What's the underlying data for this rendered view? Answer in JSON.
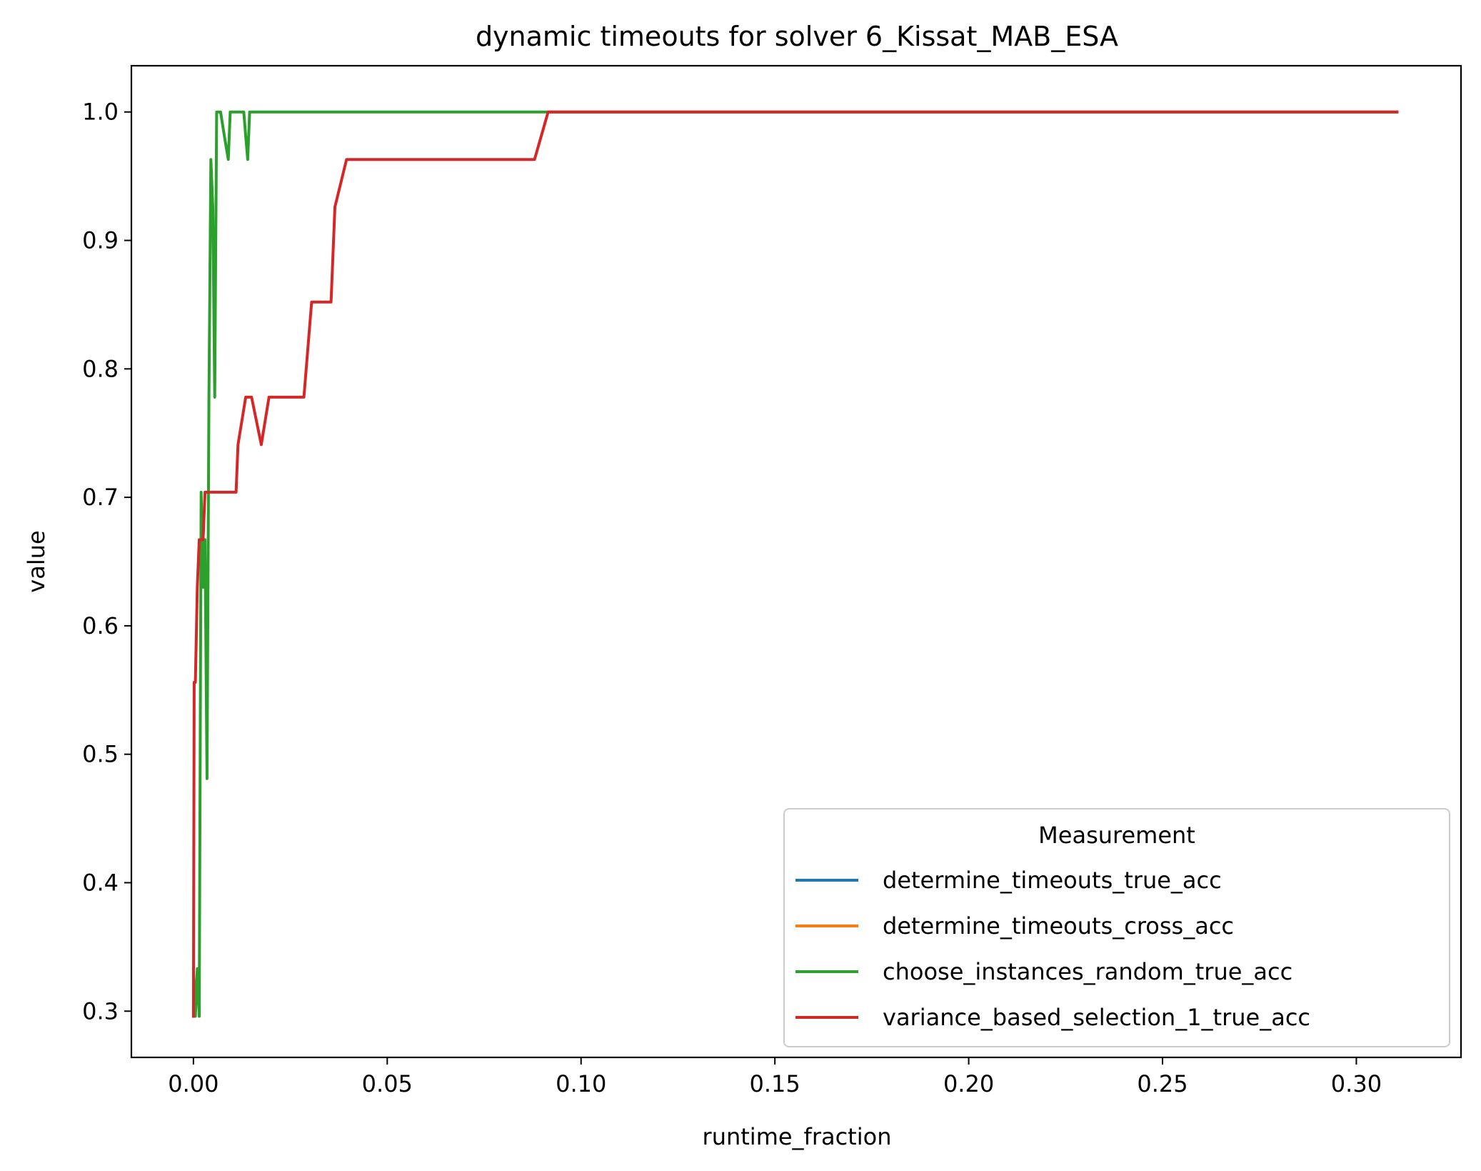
{
  "chart_data": {
    "type": "line",
    "title": "dynamic timeouts for solver 6_Kissat_MAB_ESA",
    "xlabel": "runtime_fraction",
    "ylabel": "value",
    "xlim": [
      -0.016,
      0.327
    ],
    "ylim": [
      0.264,
      1.036
    ],
    "xticks": [
      0.0,
      0.05,
      0.1,
      0.15,
      0.2,
      0.25,
      0.3
    ],
    "xtick_labels": [
      "0.00",
      "0.05",
      "0.10",
      "0.15",
      "0.20",
      "0.25",
      "0.30"
    ],
    "yticks": [
      0.3,
      0.4,
      0.5,
      0.6,
      0.7,
      0.8,
      0.9,
      1.0
    ],
    "ytick_labels": [
      "0.3",
      "0.4",
      "0.5",
      "0.6",
      "0.7",
      "0.8",
      "0.9",
      "1.0"
    ],
    "grid": false,
    "legend": {
      "title": "Measurement",
      "placement": "lower right"
    },
    "series": [
      {
        "name": "determine_timeouts_true_acc",
        "color": "#1f77b4",
        "x": [],
        "y": []
      },
      {
        "name": "determine_timeouts_cross_acc",
        "color": "#ff7f0e",
        "x": [],
        "y": []
      },
      {
        "name": "choose_instances_random_true_acc",
        "color": "#2ca02c",
        "x": [
          0.0,
          0.0005,
          0.001,
          0.0015,
          0.002,
          0.0025,
          0.003,
          0.0035,
          0.004,
          0.0045,
          0.005,
          0.0055,
          0.006,
          0.0065,
          0.007,
          0.008,
          0.009,
          0.0095,
          0.01,
          0.012,
          0.013,
          0.0135,
          0.014,
          0.0145,
          0.015,
          0.3105
        ],
        "y": [
          0.333,
          0.296,
          0.333,
          0.296,
          0.704,
          0.63,
          0.667,
          0.481,
          0.778,
          0.963,
          0.926,
          0.778,
          1.0,
          1.0,
          1.0,
          0.981,
          0.963,
          1.0,
          1.0,
          1.0,
          1.0,
          0.981,
          0.963,
          1.0,
          1.0,
          1.0
        ]
      },
      {
        "name": "variance_based_selection_1_true_acc",
        "color": "#d62728",
        "x": [
          0.0,
          0.0002,
          0.0005,
          0.001,
          0.0015,
          0.002,
          0.0025,
          0.003,
          0.0035,
          0.011,
          0.0115,
          0.0135,
          0.015,
          0.0175,
          0.0195,
          0.0285,
          0.0305,
          0.0355,
          0.0365,
          0.0395,
          0.088,
          0.0915,
          0.3105
        ],
        "y": [
          0.296,
          0.556,
          0.556,
          0.63,
          0.667,
          0.667,
          0.667,
          0.704,
          0.704,
          0.704,
          0.741,
          0.778,
          0.778,
          0.741,
          0.778,
          0.778,
          0.852,
          0.852,
          0.926,
          0.963,
          0.963,
          1.0,
          1.0
        ]
      }
    ]
  }
}
